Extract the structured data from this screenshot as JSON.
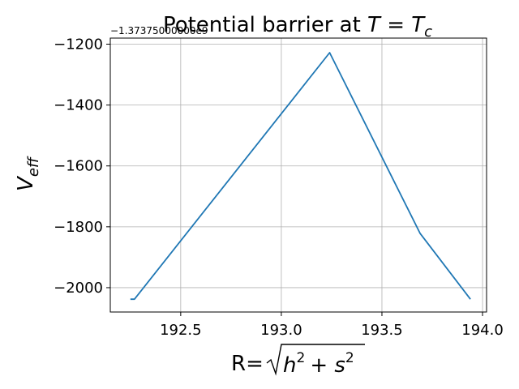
{
  "chart_data": {
    "type": "line",
    "title_text": "Potential barrier at ",
    "title_math": "T = T",
    "title_subscript": "c",
    "xlabel_prefix": "R=",
    "xlabel_math": "h",
    "xlabel_exp1": "2",
    "xlabel_plus": "+ ",
    "xlabel_s": "s",
    "xlabel_exp2": "2",
    "ylabel_main": "V",
    "ylabel_sub": "eff",
    "y_offset_text": "−1.37375000000e9",
    "xlim": [
      192.15,
      194.02
    ],
    "ylim": [
      -2080,
      -1180
    ],
    "xticks": [
      192.5,
      193.0,
      193.5,
      194.0
    ],
    "xtick_labels": [
      "192.5",
      "193.0",
      "193.5",
      "194.0"
    ],
    "yticks": [
      -2000,
      -1800,
      -1600,
      -1400,
      -1200
    ],
    "ytick_labels": [
      "−2000",
      "−1800",
      "−1600",
      "−1400",
      "−1200"
    ],
    "grid": true,
    "series": [
      {
        "color": "#1f77b4",
        "x": [
          192.25,
          192.27,
          193.24,
          193.69,
          193.94
        ],
        "y": [
          -2038,
          -2038,
          -1228,
          -1822,
          -2038
        ]
      }
    ]
  }
}
